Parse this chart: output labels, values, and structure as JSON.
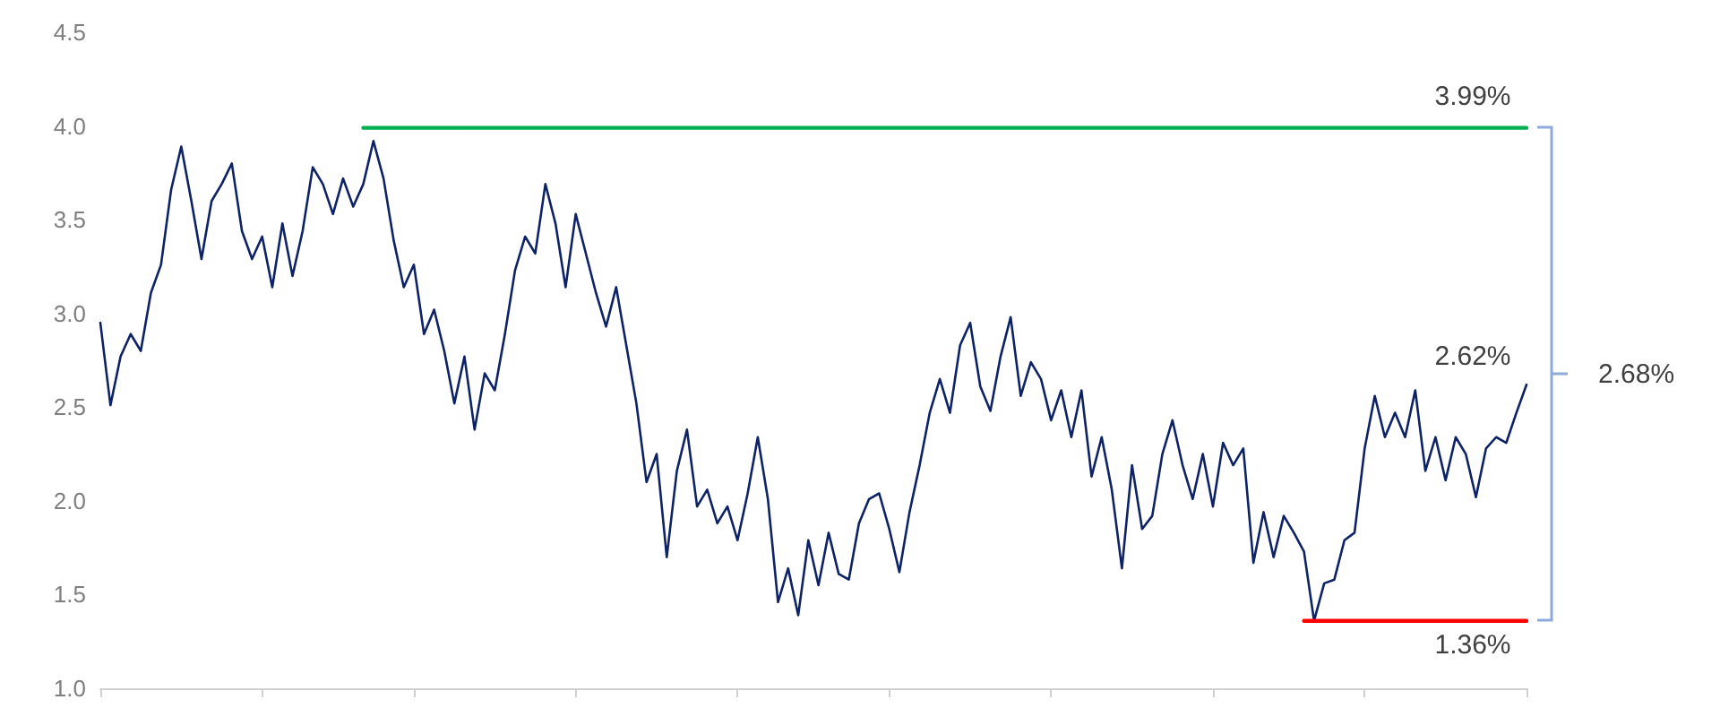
{
  "chart_data": {
    "type": "line",
    "categories": [
      null,
      null,
      null,
      null,
      null,
      null,
      null,
      null,
      null,
      null,
      null,
      null,
      null,
      null,
      null,
      null,
      null,
      null,
      null,
      null,
      null,
      null,
      null,
      null,
      null,
      null,
      null,
      null,
      null,
      null,
      null,
      null,
      null,
      null,
      null,
      null,
      null,
      null,
      null,
      null,
      null,
      null,
      null,
      null,
      null,
      null,
      null,
      null,
      null,
      null,
      null,
      null,
      null,
      null,
      null,
      null,
      null,
      null,
      null,
      null,
      null,
      null,
      null,
      null,
      null,
      null,
      null,
      null,
      null,
      null,
      null,
      null,
      null,
      null,
      null,
      null,
      null,
      null,
      null,
      null,
      null,
      null,
      null,
      null,
      null,
      null,
      null,
      null,
      null,
      null,
      null,
      null,
      null,
      null,
      null,
      null,
      null,
      null,
      null,
      null,
      null,
      null,
      null,
      null,
      null,
      null,
      null,
      null,
      null,
      null,
      null,
      null,
      null,
      null,
      null,
      null,
      null,
      null,
      null,
      null,
      null,
      null,
      null,
      null,
      null,
      null,
      null,
      null,
      null,
      null,
      null,
      null,
      null,
      null,
      null,
      null,
      null,
      null,
      null,
      null,
      null,
      null
    ],
    "ylim": [
      1,
      4.5
    ],
    "yticks": [
      {
        "value": 1,
        "label": "1.0"
      },
      {
        "value": 1.5,
        "label": "1.5"
      },
      {
        "value": 2,
        "label": "2.0"
      },
      {
        "value": 2.5,
        "label": "2.5"
      },
      {
        "value": 3,
        "label": "3.0"
      },
      {
        "value": 3.5,
        "label": "3.5"
      },
      {
        "value": 4,
        "label": "4.0"
      },
      {
        "value": 4.5,
        "label": "4.5"
      }
    ],
    "grid": false,
    "marker": "none",
    "line_style": "solid",
    "series": [
      {
        "color": "#0d2366",
        "values": [
          2.95,
          2.51,
          2.77,
          2.89,
          2.8,
          3.11,
          3.26,
          3.66,
          3.89,
          3.6,
          3.29,
          3.6,
          3.69,
          3.8,
          3.44,
          3.29,
          3.41,
          3.14,
          3.48,
          3.2,
          3.44,
          3.78,
          3.69,
          3.53,
          3.72,
          3.57,
          3.69,
          3.92,
          3.72,
          3.39,
          3.14,
          3.26,
          2.89,
          3.02,
          2.8,
          2.52,
          2.77,
          2.38,
          2.68,
          2.59,
          2.89,
          3.23,
          3.41,
          3.32,
          3.69,
          3.48,
          3.14,
          3.53,
          3.32,
          3.11,
          2.93,
          3.14,
          2.83,
          2.52,
          2.1,
          2.25,
          1.7,
          2.16,
          2.38,
          1.97,
          2.06,
          1.88,
          1.97,
          1.79,
          2.04,
          2.34,
          2.01,
          1.46,
          1.64,
          1.39,
          1.79,
          1.55,
          1.83,
          1.61,
          1.58,
          1.88,
          2.01,
          2.04,
          1.85,
          1.62,
          1.94,
          2.19,
          2.47,
          2.65,
          2.47,
          2.83,
          2.95,
          2.61,
          2.48,
          2.77,
          2.98,
          2.56,
          2.74,
          2.65,
          2.43,
          2.59,
          2.34,
          2.59,
          2.13,
          2.34,
          2.06,
          1.64,
          2.19,
          1.85,
          1.92,
          2.25,
          2.43,
          2.19,
          2.01,
          2.25,
          1.97,
          2.31,
          2.19,
          2.28,
          1.67,
          1.94,
          1.7,
          1.92,
          1.83,
          1.73,
          1.36,
          1.56,
          1.58,
          1.79,
          1.83,
          2.28,
          2.56,
          2.34,
          2.47,
          2.34,
          2.59,
          2.16,
          2.34,
          2.11,
          2.34,
          2.25,
          2.02,
          2.28,
          2.34,
          2.31,
          2.47,
          2.62
        ]
      },
      {
        "color": "#00b050",
        "values": [
          null,
          null,
          null,
          null,
          null,
          null,
          null,
          null,
          null,
          null,
          null,
          null,
          null,
          null,
          null,
          null,
          null,
          null,
          null,
          null,
          null,
          null,
          null,
          null,
          null,
          null,
          3.99,
          3.99,
          3.99,
          3.99,
          3.99,
          3.99,
          3.99,
          3.99,
          3.99,
          3.99,
          3.99,
          3.99,
          3.99,
          3.99,
          3.99,
          3.99,
          3.99,
          3.99,
          3.99,
          3.99,
          3.99,
          3.99,
          3.99,
          3.99,
          3.99,
          3.99,
          3.99,
          3.99,
          3.99,
          3.99,
          3.99,
          3.99,
          3.99,
          3.99,
          3.99,
          3.99,
          3.99,
          3.99,
          3.99,
          3.99,
          3.99,
          3.99,
          3.99,
          3.99,
          3.99,
          3.99,
          3.99,
          3.99,
          3.99,
          3.99,
          3.99,
          3.99,
          3.99,
          3.99,
          3.99,
          3.99,
          3.99,
          3.99,
          3.99,
          3.99,
          3.99,
          3.99,
          3.99,
          3.99,
          3.99,
          3.99,
          3.99,
          3.99,
          3.99,
          3.99,
          3.99,
          3.99,
          3.99,
          3.99,
          3.99,
          3.99,
          3.99,
          3.99,
          3.99,
          3.99,
          3.99,
          3.99,
          3.99,
          3.99,
          3.99,
          3.99,
          3.99,
          3.99,
          3.99,
          3.99,
          3.99,
          3.99,
          3.99,
          3.99,
          3.99,
          3.99,
          3.99,
          3.99,
          3.99,
          3.99,
          3.99,
          3.99,
          3.99,
          3.99,
          3.99,
          3.99,
          3.99,
          3.99,
          3.99,
          3.99,
          3.99,
          3.99,
          3.99,
          3.99,
          3.99,
          3.99
        ]
      },
      {
        "color": "#ff0000",
        "values": [
          null,
          null,
          null,
          null,
          null,
          null,
          null,
          null,
          null,
          null,
          null,
          null,
          null,
          null,
          null,
          null,
          null,
          null,
          null,
          null,
          null,
          null,
          null,
          null,
          null,
          null,
          null,
          null,
          null,
          null,
          null,
          null,
          null,
          null,
          null,
          null,
          null,
          null,
          null,
          null,
          null,
          null,
          null,
          null,
          null,
          null,
          null,
          null,
          null,
          null,
          null,
          null,
          null,
          null,
          null,
          null,
          null,
          null,
          null,
          null,
          null,
          null,
          null,
          null,
          null,
          null,
          null,
          null,
          null,
          null,
          null,
          null,
          null,
          null,
          null,
          null,
          null,
          null,
          null,
          null,
          null,
          null,
          null,
          null,
          null,
          null,
          null,
          null,
          null,
          null,
          null,
          null,
          null,
          null,
          null,
          null,
          null,
          null,
          null,
          null,
          null,
          null,
          null,
          null,
          null,
          null,
          null,
          null,
          null,
          null,
          null,
          null,
          null,
          null,
          null,
          null,
          null,
          null,
          null,
          1.36,
          1.36,
          1.36,
          1.36,
          1.36,
          1.36,
          1.36,
          1.36,
          1.36,
          1.36,
          1.36,
          1.36,
          1.36,
          1.36,
          1.36,
          1.36,
          1.36,
          1.36,
          1.36,
          1.36,
          1.36,
          1.36,
          1.36
        ]
      }
    ],
    "annotations": [
      {
        "text": "3.99%",
        "y": 3.99
      },
      {
        "text": "1.36%",
        "y": 1.36
      },
      "2.62%",
      "2.68%"
    ]
  }
}
